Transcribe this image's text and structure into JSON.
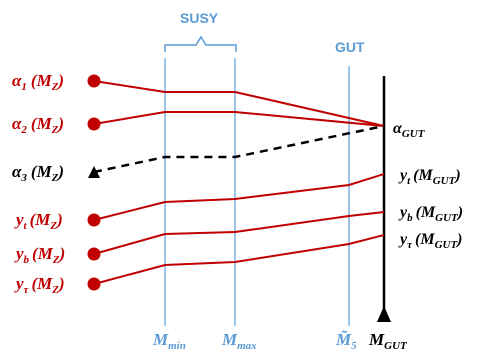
{
  "colors": {
    "red": "#c00000",
    "blue": "#5b9bd5",
    "black": "#000000"
  },
  "labels": {
    "susy": "SUSY",
    "gut": "GUT",
    "alpha_gut": "GUT"
  },
  "left_labels": [
    {
      "sym": "α",
      "sub": "1",
      "arg": "(M",
      "argsub": "Z",
      "close": ")",
      "color": "red"
    },
    {
      "sym": "α",
      "sub": "2",
      "arg": "(M",
      "argsub": "Z",
      "close": ")",
      "color": "red"
    },
    {
      "sym": "α",
      "sub": "3",
      "arg": "(M",
      "argsub": "Z",
      "close": ")",
      "color": "black"
    },
    {
      "sym": "y",
      "sub": "t",
      "arg": "(M",
      "argsub": "Z",
      "close": ")",
      "color": "red"
    },
    {
      "sym": "y",
      "sub": "b",
      "arg": "(M",
      "argsub": "Z",
      "close": ")",
      "color": "red"
    },
    {
      "sym": "y",
      "sub": "τ",
      "arg": "(M",
      "argsub": "Z",
      "close": ")",
      "color": "red"
    }
  ],
  "right_labels": [
    {
      "sym": "y",
      "sub": "t",
      "arg": "(M",
      "argsub": "GUT",
      "close": ")"
    },
    {
      "sym": "y",
      "sub": "b",
      "arg": "(M",
      "argsub": "GUT",
      "close": ")"
    },
    {
      "sym": "y",
      "sub": "τ",
      "arg": "(M",
      "argsub": "GUT",
      "close": ")"
    }
  ],
  "alpha_gut": {
    "sym": "α",
    "sub": "GUT"
  },
  "axis_labels": {
    "mmin": {
      "sym": "M",
      "sub": "min"
    },
    "mmax": {
      "sym": "M",
      "sub": "max"
    },
    "m5": {
      "sym": "M̃",
      "sub": "5"
    },
    "mgut": {
      "sym": "M",
      "sub": "GUT"
    }
  }
}
